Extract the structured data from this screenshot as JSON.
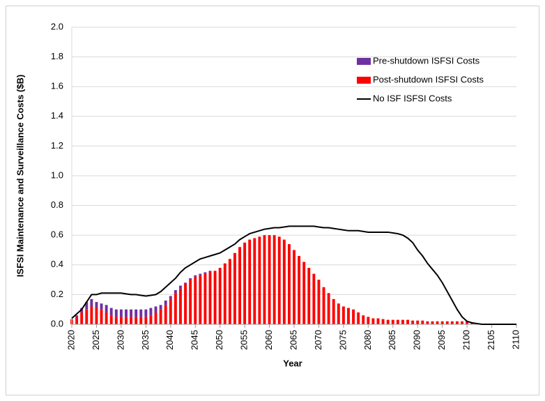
{
  "chart_data": {
    "type": "bar",
    "stacked": true,
    "x_label": "Year",
    "y_label": "ISFSI Maintenance and Surveillance Costs ($B)",
    "xlim": [
      2020,
      2110
    ],
    "xticks": [
      2020,
      2025,
      2030,
      2035,
      2040,
      2045,
      2050,
      2055,
      2060,
      2065,
      2070,
      2075,
      2080,
      2085,
      2090,
      2095,
      2100,
      2105,
      2110
    ],
    "ylim": [
      0,
      2
    ],
    "yticks": [
      {
        "value": 0,
        "label": "0.0"
      },
      {
        "value": 0.2,
        "label": "0.2"
      },
      {
        "value": 0.4,
        "label": "0.4"
      },
      {
        "value": 0.6,
        "label": "0.6"
      },
      {
        "value": 0.8,
        "label": "0.8"
      },
      {
        "value": 1,
        "label": "1.0"
      },
      {
        "value": 1.2,
        "label": "1.2"
      },
      {
        "value": 1.4,
        "label": "1.4"
      },
      {
        "value": 1.6,
        "label": "1.6"
      },
      {
        "value": 1.8,
        "label": "1.8"
      },
      {
        "value": 2,
        "label": "2.0"
      }
    ],
    "grid": true,
    "legend_position": "upper right",
    "x": [
      2020,
      2021,
      2022,
      2023,
      2024,
      2025,
      2026,
      2027,
      2028,
      2029,
      2030,
      2031,
      2032,
      2033,
      2034,
      2035,
      2036,
      2037,
      2038,
      2039,
      2040,
      2041,
      2042,
      2043,
      2044,
      2045,
      2046,
      2047,
      2048,
      2049,
      2050,
      2051,
      2052,
      2053,
      2054,
      2055,
      2056,
      2057,
      2058,
      2059,
      2060,
      2061,
      2062,
      2063,
      2064,
      2065,
      2066,
      2067,
      2068,
      2069,
      2070,
      2071,
      2072,
      2073,
      2074,
      2075,
      2076,
      2077,
      2078,
      2079,
      2080,
      2081,
      2082,
      2083,
      2084,
      2085,
      2086,
      2087,
      2088,
      2089,
      2090,
      2091,
      2092,
      2093,
      2094,
      2095,
      2096,
      2097,
      2098,
      2099,
      2100,
      2101,
      2102,
      2103,
      2104,
      2105,
      2106,
      2107,
      2108,
      2109,
      2110
    ],
    "series": [
      {
        "name": "Pre-shutdown ISFSI Costs",
        "type": "bar",
        "color": "#7030a0",
        "values": [
          0.005,
          0.01,
          0.03,
          0.05,
          0.05,
          0.04,
          0.04,
          0.05,
          0.05,
          0.05,
          0.05,
          0.05,
          0.05,
          0.05,
          0.05,
          0.05,
          0.05,
          0.04,
          0.03,
          0.03,
          0.02,
          0.02,
          0.02,
          0.01,
          0.01,
          0.01,
          0.01,
          0.01,
          0.01,
          0,
          0,
          0,
          0,
          0,
          0,
          0,
          0,
          0,
          0,
          0,
          0,
          0,
          0,
          0,
          0,
          0,
          0,
          0,
          0,
          0,
          0,
          0,
          0,
          0,
          0,
          0,
          0,
          0,
          0,
          0,
          0,
          0,
          0,
          0,
          0,
          0,
          0,
          0,
          0,
          0,
          0,
          0,
          0,
          0,
          0,
          0,
          0,
          0,
          0,
          0,
          0,
          0,
          0,
          0,
          0,
          0,
          0,
          0,
          0,
          0,
          0
        ]
      },
      {
        "name": "Post-shutdown ISFSI Costs",
        "type": "bar",
        "color": "#ff0000",
        "values": [
          0.03,
          0.05,
          0.08,
          0.1,
          0.12,
          0.11,
          0.1,
          0.08,
          0.06,
          0.05,
          0.05,
          0.05,
          0.05,
          0.05,
          0.05,
          0.05,
          0.06,
          0.08,
          0.1,
          0.13,
          0.17,
          0.21,
          0.24,
          0.27,
          0.3,
          0.32,
          0.33,
          0.34,
          0.35,
          0.36,
          0.38,
          0.41,
          0.44,
          0.48,
          0.52,
          0.55,
          0.57,
          0.58,
          0.59,
          0.6,
          0.6,
          0.6,
          0.59,
          0.57,
          0.54,
          0.5,
          0.46,
          0.42,
          0.38,
          0.34,
          0.3,
          0.25,
          0.21,
          0.17,
          0.14,
          0.12,
          0.11,
          0.1,
          0.08,
          0.06,
          0.05,
          0.04,
          0.04,
          0.035,
          0.03,
          0.03,
          0.03,
          0.03,
          0.03,
          0.025,
          0.025,
          0.025,
          0.02,
          0.02,
          0.02,
          0.02,
          0.02,
          0.02,
          0.02,
          0.02,
          0.02,
          0.01,
          0,
          0,
          0,
          0,
          0,
          0,
          0,
          0,
          0
        ]
      },
      {
        "name": "No ISF ISFSI Costs",
        "type": "line",
        "color": "#000000",
        "values": [
          0.04,
          0.07,
          0.1,
          0.15,
          0.2,
          0.2,
          0.21,
          0.21,
          0.21,
          0.21,
          0.21,
          0.205,
          0.2,
          0.2,
          0.195,
          0.19,
          0.195,
          0.2,
          0.22,
          0.25,
          0.28,
          0.31,
          0.35,
          0.38,
          0.4,
          0.42,
          0.44,
          0.45,
          0.46,
          0.47,
          0.48,
          0.5,
          0.52,
          0.54,
          0.57,
          0.59,
          0.61,
          0.62,
          0.63,
          0.64,
          0.645,
          0.65,
          0.65,
          0.655,
          0.66,
          0.66,
          0.66,
          0.66,
          0.66,
          0.66,
          0.655,
          0.65,
          0.65,
          0.645,
          0.64,
          0.635,
          0.63,
          0.63,
          0.63,
          0.625,
          0.62,
          0.62,
          0.62,
          0.62,
          0.62,
          0.615,
          0.61,
          0.6,
          0.58,
          0.55,
          0.5,
          0.46,
          0.41,
          0.37,
          0.33,
          0.28,
          0.22,
          0.16,
          0.1,
          0.05,
          0.02,
          0.01,
          0.005,
          0,
          0,
          0,
          0,
          0,
          0,
          0,
          0
        ]
      }
    ]
  }
}
